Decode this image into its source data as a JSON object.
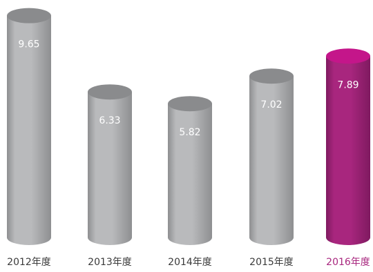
{
  "chart_data": {
    "type": "bar",
    "categories": [
      "2012年度",
      "2013年度",
      "2014年度",
      "2015年度",
      "2016年度"
    ],
    "values": [
      9.65,
      6.33,
      5.82,
      7.02,
      7.89
    ],
    "value_labels": [
      "9.65",
      "6.33",
      "5.82",
      "7.02",
      "7.89"
    ],
    "highlight_index": 4,
    "title": "",
    "xlabel": "",
    "ylabel": "",
    "ylim": [
      0,
      10
    ],
    "grid": false,
    "legend": "none",
    "colors": {
      "bar": "#b9babc",
      "bar_dark": "#8e8f91",
      "bar_top": "#8a8b8d",
      "highlight": "#a8267e",
      "highlight_dark": "#7f1a60",
      "highlight_top": "#c4168a",
      "label": "#3a3a3a",
      "highlight_label": "#a8267e"
    }
  }
}
